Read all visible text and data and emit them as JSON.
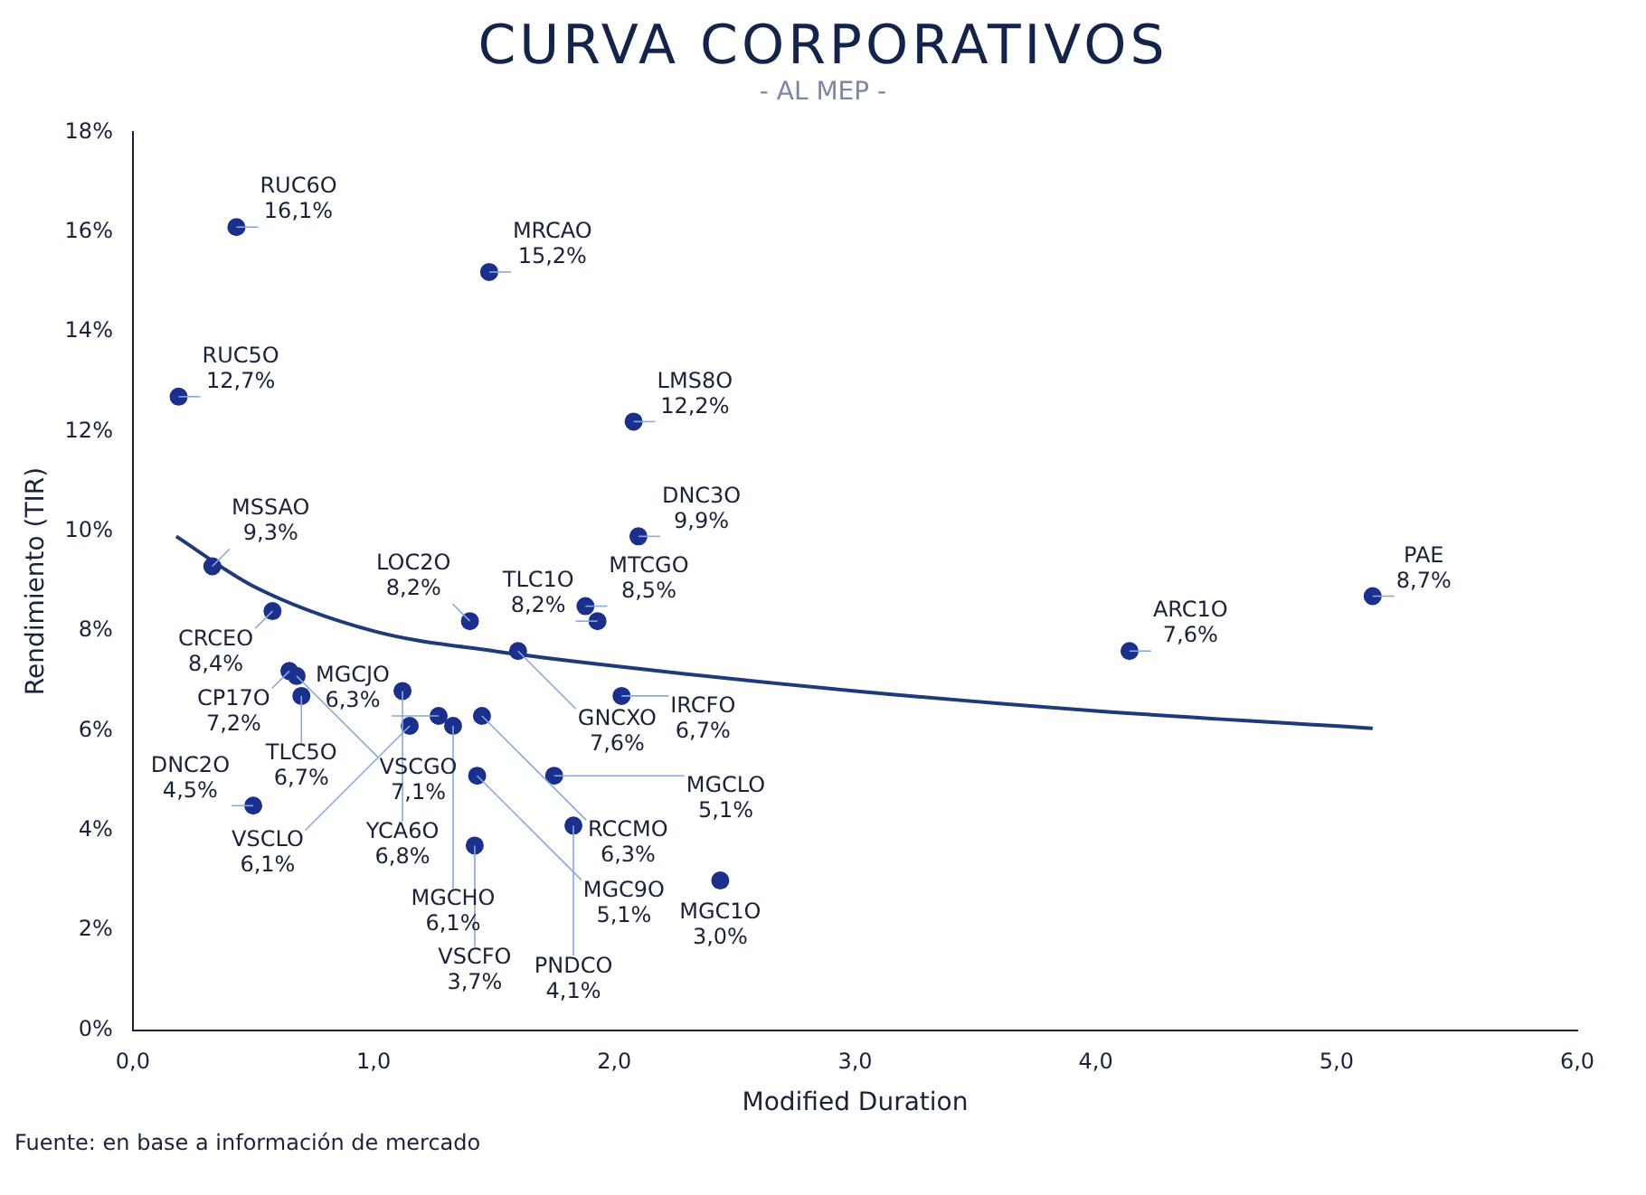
{
  "chart_data": {
    "type": "scatter",
    "title": "CURVA CORPORATIVOS",
    "subtitle": "- AL MEP -",
    "xlabel": "Modified Duration",
    "ylabel": "Rendimiento (TIR)",
    "xlim": [
      0,
      6
    ],
    "xticks": [
      {
        "value": 0,
        "label": "0,0"
      },
      {
        "value": 1,
        "label": "1,0"
      },
      {
        "value": 2,
        "label": "2,0"
      },
      {
        "value": 3,
        "label": "3,0"
      },
      {
        "value": 4,
        "label": "4,0"
      },
      {
        "value": 5,
        "label": "5,0"
      },
      {
        "value": 6,
        "label": "6,0"
      }
    ],
    "ylim": [
      0,
      18
    ],
    "yticks": [
      {
        "value": 0,
        "label": "0%"
      },
      {
        "value": 2,
        "label": "2%"
      },
      {
        "value": 4,
        "label": "4%"
      },
      {
        "value": 6,
        "label": "6%"
      },
      {
        "value": 8,
        "label": "8%"
      },
      {
        "value": 10,
        "label": "10%"
      },
      {
        "value": 12,
        "label": "12%"
      },
      {
        "value": 14,
        "label": "14%"
      },
      {
        "value": 16,
        "label": "16%"
      },
      {
        "value": 18,
        "label": "18%"
      }
    ],
    "grid": false,
    "legend": false,
    "marker": "circle",
    "series": [
      {
        "color": "#1b2f8c",
        "x": [
          0.43,
          1.48,
          0.19,
          2.08,
          2.1,
          1.88,
          1.93,
          0.58,
          0.33,
          1.4,
          1.6,
          5.15,
          4.14,
          0.65,
          0.68,
          0.7,
          1.12,
          1.27,
          1.15,
          1.33,
          1.45,
          2.03,
          1.43,
          1.75,
          1.83,
          1.42,
          0.5,
          2.44
        ],
        "values": [
          16.1,
          15.2,
          12.7,
          12.2,
          9.9,
          8.5,
          8.2,
          8.4,
          9.3,
          8.2,
          7.6,
          8.7,
          7.6,
          7.2,
          7.1,
          6.7,
          6.8,
          6.3,
          6.1,
          6.1,
          6.3,
          6.7,
          5.1,
          5.1,
          4.1,
          3.7,
          4.5,
          3.0
        ],
        "value_labels": [
          "16,1%",
          "15,2%",
          "12,7%",
          "12,2%",
          "9,9%",
          "8,5%",
          "8,2%",
          "8,4%",
          "9,3%",
          "8,2%",
          "7,6%",
          "8,7%",
          "7,6%",
          "7,2%",
          "7,1%",
          "6,7%",
          "6,8%",
          "6,3%",
          "6,1%",
          "6,1%",
          "6,3%",
          "6,7%",
          "5,1%",
          "5,1%",
          "4,1%",
          "3,7%",
          "4,5%",
          "3,0%"
        ]
      },
      {
        "type": "line",
        "color": "#1f3a7a",
        "marker": "none",
        "x": [
          0.18,
          0.5,
          1.0,
          1.5,
          2.0,
          3.0,
          4.0,
          5.15
        ],
        "values": [
          9.9,
          8.9,
          8.0,
          7.6,
          7.3,
          6.8,
          6.4,
          6.05
        ]
      }
    ],
    "annotations": [
      "Fuente: en base a información de mercado",
      {
        "text": "RUC6O",
        "x": 0.43,
        "y": 16.1
      },
      {
        "text": "MRCAO",
        "x": 1.48,
        "y": 15.2
      },
      {
        "text": "RUC5O",
        "x": 0.19,
        "y": 12.7
      },
      {
        "text": "LMS8O",
        "x": 2.08,
        "y": 12.2
      },
      {
        "text": "DNC3O",
        "x": 2.1,
        "y": 9.9
      },
      {
        "text": "MTCGO",
        "x": 1.88,
        "y": 8.5
      },
      {
        "text": "TLC1O",
        "x": 1.93,
        "y": 8.2
      },
      {
        "text": "CRCEO",
        "x": 0.58,
        "y": 8.4
      },
      {
        "text": "MSSAO",
        "x": 0.33,
        "y": 9.3
      },
      {
        "text": "LOC2O",
        "x": 1.4,
        "y": 8.2
      },
      {
        "text": "GNCXO",
        "x": 1.6,
        "y": 7.6
      },
      {
        "text": "PAE",
        "x": 5.15,
        "y": 8.7
      },
      {
        "text": "ARC1O",
        "x": 4.14,
        "y": 7.6
      },
      {
        "text": "CP17O",
        "x": 0.65,
        "y": 7.2
      },
      {
        "text": "VSCGO",
        "x": 0.68,
        "y": 7.1
      },
      {
        "text": "TLC5O",
        "x": 0.7,
        "y": 6.7
      },
      {
        "text": "YCA6O",
        "x": 1.12,
        "y": 6.8
      },
      {
        "text": "MGCJO",
        "x": 1.27,
        "y": 6.3
      },
      {
        "text": "VSCLO",
        "x": 1.15,
        "y": 6.1
      },
      {
        "text": "MGCHO",
        "x": 1.33,
        "y": 6.1
      },
      {
        "text": "RCCMO",
        "x": 1.45,
        "y": 6.3
      },
      {
        "text": "IRCFO",
        "x": 2.03,
        "y": 6.7
      },
      {
        "text": "MGC9O",
        "x": 1.43,
        "y": 5.1
      },
      {
        "text": "MGCLO",
        "x": 1.75,
        "y": 5.1
      },
      {
        "text": "PNDCO",
        "x": 1.83,
        "y": 4.1
      },
      {
        "text": "VSCFO",
        "x": 1.42,
        "y": 3.7
      },
      {
        "text": "DNC2O",
        "x": 0.5,
        "y": 4.5
      },
      {
        "text": "MGC1O",
        "x": 2.44,
        "y": 3.0
      }
    ]
  }
}
